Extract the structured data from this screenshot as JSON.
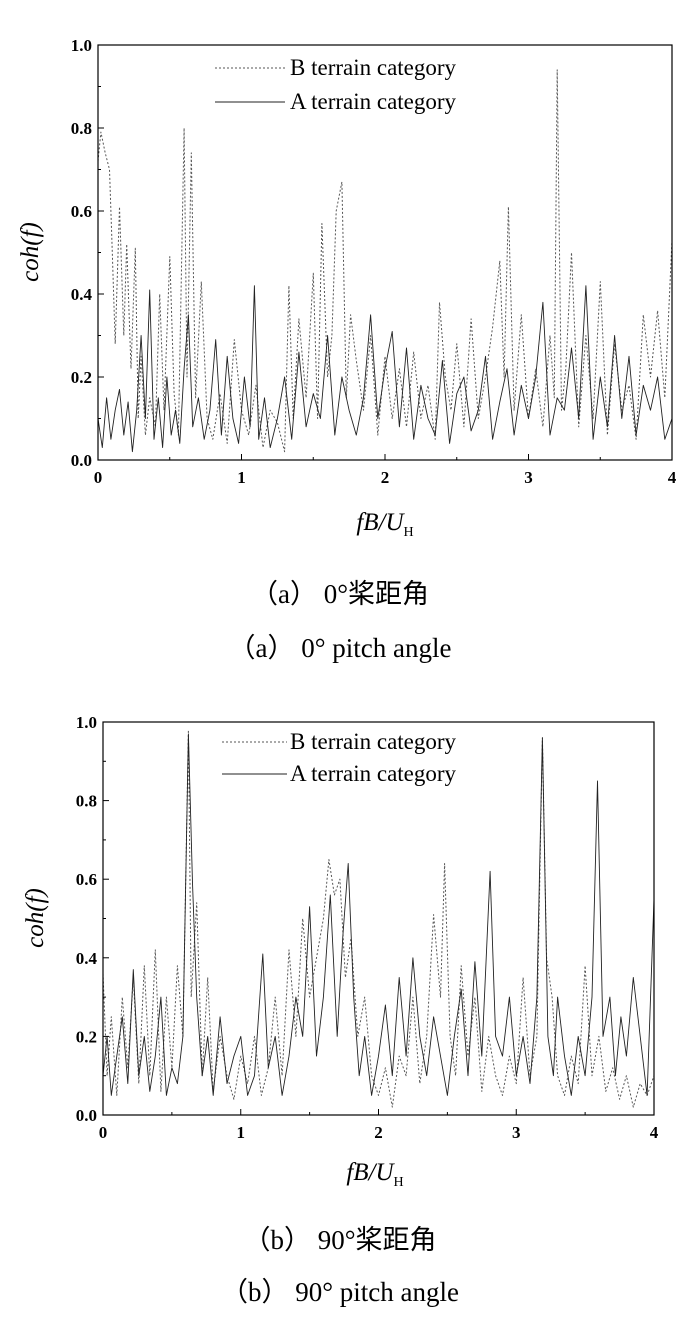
{
  "chart_data": [
    {
      "type": "line",
      "title": "",
      "xlabel": "fB/U",
      "xlabel_sub": "H",
      "ylabel": "coh(f)",
      "xlim": [
        0,
        4
      ],
      "ylim": [
        0,
        1
      ],
      "xticks": [
        "0",
        "1",
        "2",
        "3",
        "4"
      ],
      "yticks": [
        "0.0",
        "0.2",
        "0.4",
        "0.6",
        "0.8",
        "1.0"
      ],
      "legend_position": "top-center",
      "caption_cn": "（a） 0°桨距角",
      "caption_en": "（a） 0° pitch angle",
      "series": [
        {
          "name": "B terrain category",
          "style": "dotted",
          "x": [
            0,
            0.02,
            0.05,
            0.08,
            0.1,
            0.12,
            0.15,
            0.18,
            0.2,
            0.23,
            0.26,
            0.28,
            0.3,
            0.33,
            0.36,
            0.4,
            0.43,
            0.46,
            0.5,
            0.53,
            0.56,
            0.6,
            0.62,
            0.65,
            0.68,
            0.72,
            0.76,
            0.8,
            0.85,
            0.9,
            0.95,
            1.0,
            1.05,
            1.1,
            1.15,
            1.2,
            1.25,
            1.3,
            1.33,
            1.36,
            1.4,
            1.45,
            1.5,
            1.53,
            1.56,
            1.6,
            1.63,
            1.66,
            1.7,
            1.73,
            1.76,
            1.8,
            1.85,
            1.9,
            1.95,
            2.0,
            2.05,
            2.1,
            2.15,
            2.2,
            2.25,
            2.3,
            2.35,
            2.38,
            2.42,
            2.46,
            2.5,
            2.55,
            2.6,
            2.65,
            2.7,
            2.75,
            2.8,
            2.83,
            2.86,
            2.9,
            2.95,
            3.0,
            3.05,
            3.1,
            3.15,
            3.18,
            3.2,
            3.23,
            3.26,
            3.3,
            3.35,
            3.4,
            3.45,
            3.5,
            3.55,
            3.6,
            3.65,
            3.7,
            3.75,
            3.8,
            3.85,
            3.9,
            3.95,
            4.0
          ],
          "values": [
            0.72,
            0.79,
            0.74,
            0.7,
            0.5,
            0.28,
            0.61,
            0.3,
            0.52,
            0.22,
            0.51,
            0.1,
            0.25,
            0.06,
            0.15,
            0.08,
            0.4,
            0.12,
            0.49,
            0.16,
            0.06,
            0.8,
            0.2,
            0.74,
            0.15,
            0.43,
            0.1,
            0.05,
            0.16,
            0.04,
            0.29,
            0.12,
            0.06,
            0.18,
            0.03,
            0.12,
            0.09,
            0.02,
            0.42,
            0.1,
            0.34,
            0.15,
            0.45,
            0.1,
            0.57,
            0.2,
            0.3,
            0.6,
            0.67,
            0.15,
            0.35,
            0.24,
            0.12,
            0.3,
            0.06,
            0.25,
            0.1,
            0.22,
            0.08,
            0.26,
            0.1,
            0.18,
            0.05,
            0.38,
            0.2,
            0.12,
            0.28,
            0.08,
            0.34,
            0.1,
            0.2,
            0.32,
            0.48,
            0.2,
            0.61,
            0.12,
            0.35,
            0.1,
            0.22,
            0.08,
            0.3,
            0.15,
            0.94,
            0.12,
            0.22,
            0.5,
            0.08,
            0.3,
            0.1,
            0.43,
            0.06,
            0.28,
            0.12,
            0.18,
            0.05,
            0.35,
            0.2,
            0.36,
            0.15,
            0.53
          ]
        },
        {
          "name": "A terrain category",
          "style": "solid",
          "x": [
            0,
            0.03,
            0.06,
            0.09,
            0.12,
            0.15,
            0.18,
            0.21,
            0.24,
            0.27,
            0.3,
            0.33,
            0.36,
            0.39,
            0.42,
            0.45,
            0.48,
            0.51,
            0.54,
            0.57,
            0.6,
            0.63,
            0.66,
            0.7,
            0.74,
            0.78,
            0.82,
            0.86,
            0.9,
            0.94,
            0.98,
            1.02,
            1.06,
            1.09,
            1.12,
            1.16,
            1.2,
            1.25,
            1.3,
            1.35,
            1.4,
            1.45,
            1.5,
            1.55,
            1.6,
            1.65,
            1.7,
            1.75,
            1.8,
            1.85,
            1.9,
            1.95,
            2.0,
            2.05,
            2.1,
            2.15,
            2.2,
            2.25,
            2.3,
            2.35,
            2.4,
            2.45,
            2.5,
            2.55,
            2.6,
            2.65,
            2.7,
            2.75,
            2.8,
            2.85,
            2.9,
            2.95,
            3.0,
            3.05,
            3.1,
            3.15,
            3.2,
            3.25,
            3.3,
            3.35,
            3.4,
            3.45,
            3.5,
            3.55,
            3.6,
            3.65,
            3.7,
            3.75,
            3.8,
            3.85,
            3.9,
            3.95,
            4.0
          ],
          "values": [
            0.1,
            0.03,
            0.15,
            0.05,
            0.12,
            0.17,
            0.06,
            0.14,
            0.02,
            0.12,
            0.3,
            0.1,
            0.41,
            0.05,
            0.15,
            0.03,
            0.2,
            0.06,
            0.12,
            0.04,
            0.22,
            0.35,
            0.08,
            0.15,
            0.05,
            0.12,
            0.29,
            0.06,
            0.25,
            0.1,
            0.04,
            0.2,
            0.08,
            0.42,
            0.05,
            0.15,
            0.03,
            0.1,
            0.2,
            0.05,
            0.26,
            0.08,
            0.16,
            0.1,
            0.3,
            0.06,
            0.2,
            0.12,
            0.06,
            0.15,
            0.35,
            0.1,
            0.22,
            0.31,
            0.08,
            0.27,
            0.05,
            0.18,
            0.1,
            0.06,
            0.24,
            0.04,
            0.16,
            0.2,
            0.07,
            0.12,
            0.25,
            0.05,
            0.14,
            0.22,
            0.06,
            0.18,
            0.1,
            0.2,
            0.38,
            0.06,
            0.15,
            0.12,
            0.27,
            0.1,
            0.42,
            0.05,
            0.2,
            0.08,
            0.3,
            0.1,
            0.25,
            0.06,
            0.18,
            0.12,
            0.2,
            0.05,
            0.1
          ]
        }
      ]
    },
    {
      "type": "line",
      "title": "",
      "xlabel": "fB/U",
      "xlabel_sub": "H",
      "ylabel": "coh(f)",
      "xlim": [
        0,
        4
      ],
      "ylim": [
        0,
        1
      ],
      "xticks": [
        "0",
        "1",
        "2",
        "3",
        "4"
      ],
      "yticks": [
        "0.0",
        "0.2",
        "0.4",
        "0.6",
        "0.8",
        "1.0"
      ],
      "legend_position": "top-center",
      "caption_cn": "（b） 90°桨距角",
      "caption_en": "（b） 90° pitch angle",
      "series": [
        {
          "name": "B  terrain category",
          "style": "dotted",
          "x": [
            0,
            0.03,
            0.06,
            0.1,
            0.14,
            0.18,
            0.22,
            0.26,
            0.3,
            0.34,
            0.38,
            0.42,
            0.46,
            0.5,
            0.54,
            0.58,
            0.62,
            0.64,
            0.68,
            0.72,
            0.76,
            0.8,
            0.85,
            0.9,
            0.95,
            1.0,
            1.05,
            1.1,
            1.15,
            1.2,
            1.25,
            1.3,
            1.35,
            1.4,
            1.45,
            1.5,
            1.55,
            1.6,
            1.64,
            1.68,
            1.72,
            1.76,
            1.8,
            1.85,
            1.9,
            1.95,
            2.0,
            2.05,
            2.1,
            2.15,
            2.2,
            2.25,
            2.3,
            2.35,
            2.4,
            2.45,
            2.48,
            2.52,
            2.56,
            2.6,
            2.65,
            2.7,
            2.75,
            2.8,
            2.85,
            2.9,
            2.95,
            3.0,
            3.05,
            3.1,
            3.15,
            3.19,
            3.22,
            3.26,
            3.3,
            3.35,
            3.4,
            3.45,
            3.5,
            3.55,
            3.6,
            3.65,
            3.7,
            3.75,
            3.8,
            3.85,
            3.9,
            3.95,
            4.0
          ],
          "values": [
            0.36,
            0.1,
            0.25,
            0.05,
            0.3,
            0.12,
            0.35,
            0.08,
            0.38,
            0.1,
            0.42,
            0.06,
            0.3,
            0.12,
            0.38,
            0.2,
            0.98,
            0.3,
            0.54,
            0.1,
            0.35,
            0.06,
            0.2,
            0.1,
            0.04,
            0.15,
            0.08,
            0.2,
            0.05,
            0.12,
            0.3,
            0.1,
            0.42,
            0.2,
            0.5,
            0.3,
            0.4,
            0.5,
            0.65,
            0.56,
            0.6,
            0.35,
            0.45,
            0.2,
            0.3,
            0.1,
            0.05,
            0.12,
            0.02,
            0.15,
            0.1,
            0.3,
            0.08,
            0.2,
            0.51,
            0.3,
            0.64,
            0.2,
            0.1,
            0.38,
            0.15,
            0.3,
            0.06,
            0.2,
            0.1,
            0.05,
            0.15,
            0.08,
            0.35,
            0.1,
            0.2,
            0.96,
            0.4,
            0.3,
            0.1,
            0.05,
            0.15,
            0.08,
            0.38,
            0.1,
            0.2,
            0.06,
            0.12,
            0.04,
            0.1,
            0.02,
            0.08,
            0.05,
            0.1
          ]
        },
        {
          "name": "A  terrain category",
          "style": "solid",
          "x": [
            0,
            0.03,
            0.06,
            0.1,
            0.14,
            0.18,
            0.22,
            0.26,
            0.3,
            0.34,
            0.38,
            0.42,
            0.46,
            0.5,
            0.54,
            0.58,
            0.62,
            0.65,
            0.68,
            0.72,
            0.76,
            0.8,
            0.85,
            0.9,
            0.95,
            1.0,
            1.05,
            1.1,
            1.16,
            1.2,
            1.25,
            1.3,
            1.35,
            1.4,
            1.45,
            1.5,
            1.55,
            1.6,
            1.65,
            1.7,
            1.74,
            1.78,
            1.82,
            1.86,
            1.9,
            1.95,
            2.0,
            2.05,
            2.1,
            2.15,
            2.2,
            2.25,
            2.3,
            2.35,
            2.4,
            2.45,
            2.5,
            2.55,
            2.6,
            2.65,
            2.7,
            2.75,
            2.81,
            2.85,
            2.9,
            2.95,
            3.0,
            3.05,
            3.1,
            3.15,
            3.19,
            3.23,
            3.27,
            3.3,
            3.35,
            3.4,
            3.45,
            3.5,
            3.55,
            3.59,
            3.63,
            3.68,
            3.72,
            3.76,
            3.8,
            3.85,
            3.9,
            3.95,
            4.0
          ],
          "values": [
            0.1,
            0.2,
            0.05,
            0.15,
            0.25,
            0.08,
            0.37,
            0.1,
            0.2,
            0.06,
            0.15,
            0.3,
            0.05,
            0.12,
            0.08,
            0.2,
            0.97,
            0.59,
            0.3,
            0.1,
            0.2,
            0.05,
            0.25,
            0.08,
            0.15,
            0.2,
            0.05,
            0.1,
            0.41,
            0.12,
            0.2,
            0.05,
            0.15,
            0.3,
            0.2,
            0.53,
            0.15,
            0.3,
            0.56,
            0.2,
            0.45,
            0.64,
            0.3,
            0.1,
            0.2,
            0.05,
            0.15,
            0.28,
            0.1,
            0.35,
            0.15,
            0.4,
            0.2,
            0.1,
            0.25,
            0.15,
            0.05,
            0.2,
            0.32,
            0.1,
            0.39,
            0.15,
            0.62,
            0.2,
            0.15,
            0.3,
            0.1,
            0.2,
            0.08,
            0.3,
            0.96,
            0.2,
            0.1,
            0.3,
            0.15,
            0.05,
            0.2,
            0.1,
            0.3,
            0.85,
            0.2,
            0.3,
            0.1,
            0.25,
            0.15,
            0.35,
            0.2,
            0.05,
            0.55
          ]
        }
      ]
    }
  ]
}
